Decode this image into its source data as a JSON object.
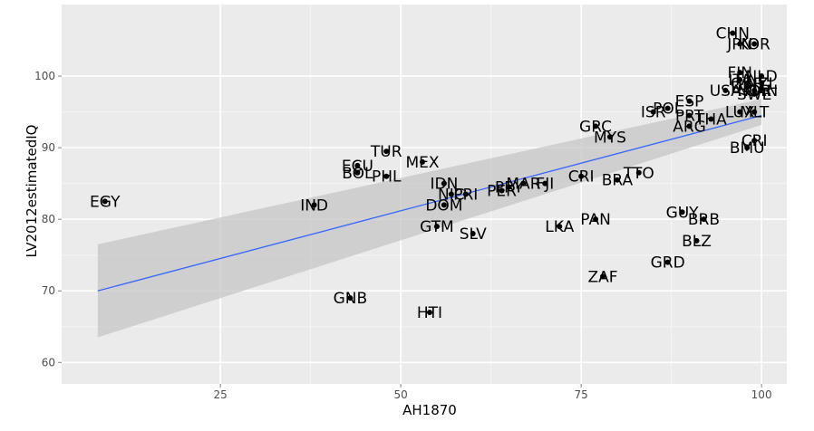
{
  "chart_data": {
    "type": "scatter",
    "xlabel": "AH1870",
    "ylabel": "LV2012estimatedIQ",
    "xlim": [
      3,
      103.5
    ],
    "ylim": [
      57,
      110
    ],
    "x_ticks": [
      25,
      50,
      75,
      100
    ],
    "y_ticks": [
      60,
      70,
      80,
      90,
      100
    ],
    "grid": true,
    "colors": {
      "panel": "#ebebeb",
      "grid_major": "#ffffff",
      "grid_minor": "#f5f5f5",
      "ribbon": "#c6c6c6",
      "fit_line": "#3366ff",
      "point": "#000000"
    },
    "fit": {
      "x": [
        8,
        100
      ],
      "y": [
        70,
        94.5
      ],
      "lower": [
        63.5,
        93.2
      ],
      "upper": [
        76.5,
        96.8
      ]
    },
    "points": [
      {
        "label": "EGY",
        "x": 9,
        "y": 82.5
      },
      {
        "label": "IND",
        "x": 38,
        "y": 82
      },
      {
        "label": "GNB",
        "x": 43,
        "y": 69
      },
      {
        "label": "ECU",
        "x": 44,
        "y": 87.5
      },
      {
        "label": "BOL",
        "x": 44,
        "y": 86.5
      },
      {
        "label": "TUR",
        "x": 48,
        "y": 89.5
      },
      {
        "label": "PHL",
        "x": 48,
        "y": 86
      },
      {
        "label": "MEX",
        "x": 53,
        "y": 88
      },
      {
        "label": "HTI",
        "x": 54,
        "y": 67
      },
      {
        "label": "GTM",
        "x": 55,
        "y": 79
      },
      {
        "label": "IDN",
        "x": 56,
        "y": 85
      },
      {
        "label": "DOM",
        "x": 56,
        "y": 82
      },
      {
        "label": "NIC",
        "x": 57,
        "y": 83.5
      },
      {
        "label": "PRI",
        "x": 59,
        "y": 83.5
      },
      {
        "label": "SLV",
        "x": 60,
        "y": 78
      },
      {
        "label": "PER",
        "x": 64,
        "y": 84
      },
      {
        "label": "PRY",
        "x": 65,
        "y": 84.5
      },
      {
        "label": "MAR",
        "x": 67,
        "y": 85
      },
      {
        "label": "FJI",
        "x": 70,
        "y": 85
      },
      {
        "label": "LKA",
        "x": 72,
        "y": 79
      },
      {
        "label": "CRI",
        "x": 75,
        "y": 86
      },
      {
        "label": "PAN",
        "x": 77,
        "y": 80
      },
      {
        "label": "GRC",
        "x": 77,
        "y": 93
      },
      {
        "label": "ZAF",
        "x": 78,
        "y": 72
      },
      {
        "label": "MYS",
        "x": 79,
        "y": 91.5
      },
      {
        "label": "BRA",
        "x": 80,
        "y": 85.5
      },
      {
        "label": "TTO",
        "x": 83,
        "y": 86.5
      },
      {
        "label": "ISR",
        "x": 85,
        "y": 95
      },
      {
        "label": "POL",
        "x": 87,
        "y": 95.5
      },
      {
        "label": "GRD",
        "x": 87,
        "y": 74
      },
      {
        "label": "GUY",
        "x": 89,
        "y": 81
      },
      {
        "label": "PRT",
        "x": 90,
        "y": 94.5
      },
      {
        "label": "ESP",
        "x": 90,
        "y": 96.5
      },
      {
        "label": "ARG",
        "x": 90,
        "y": 93
      },
      {
        "label": "BRB",
        "x": 92,
        "y": 80
      },
      {
        "label": "BLZ",
        "x": 91,
        "y": 77
      },
      {
        "label": "THA",
        "x": 93,
        "y": 94
      },
      {
        "label": "USA",
        "x": 95,
        "y": 98
      },
      {
        "label": "CHN",
        "x": 96,
        "y": 106
      },
      {
        "label": "JPN",
        "x": 97,
        "y": 104.5
      },
      {
        "label": "KOR",
        "x": 99,
        "y": 104.5
      },
      {
        "label": "FIN",
        "x": 97,
        "y": 100.5
      },
      {
        "label": "ITA",
        "x": 97,
        "y": 99.5
      },
      {
        "label": "LUX",
        "x": 97,
        "y": 95
      },
      {
        "label": "GBR",
        "x": 98,
        "y": 99
      },
      {
        "label": "DEU",
        "x": 98,
        "y": 98.5
      },
      {
        "label": "NOR",
        "x": 99,
        "y": 98
      },
      {
        "label": "SWE",
        "x": 99,
        "y": 97.5
      },
      {
        "label": "NLD",
        "x": 100,
        "y": 100
      },
      {
        "label": "NZL",
        "x": 100,
        "y": 99
      },
      {
        "label": "CAN",
        "x": 100,
        "y": 98
      },
      {
        "label": "MLT",
        "x": 99,
        "y": 95
      },
      {
        "label": "CRI",
        "x": 99,
        "y": 91
      },
      {
        "label": "BMU",
        "x": 98,
        "y": 90
      }
    ]
  }
}
